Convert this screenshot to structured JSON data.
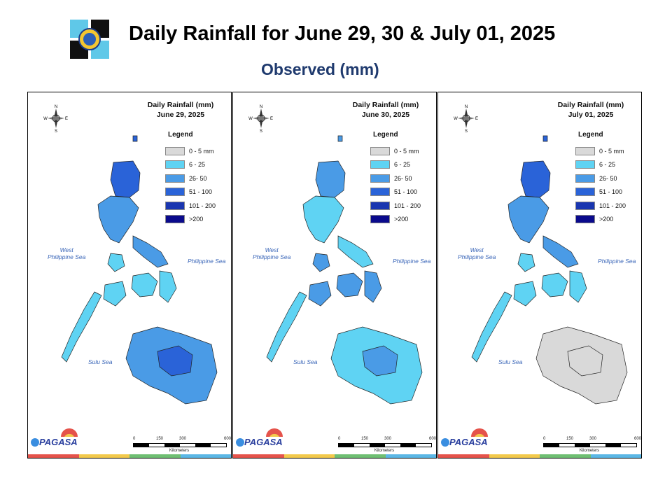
{
  "header": {
    "title": "Daily Rainfall for June 29, 30 & July 01, 2025",
    "subtitle": "Observed (mm)"
  },
  "legend": {
    "title": "Legend",
    "items": [
      {
        "label": "0 - 5 mm",
        "color": "#d9d9d9"
      },
      {
        "label": "6 - 25",
        "color": "#5fd3f3"
      },
      {
        "label": "26- 50",
        "color": "#4a9be6"
      },
      {
        "label": "51 - 100",
        "color": "#2a63d8"
      },
      {
        "label": "101 - 200",
        "color": "#1a36b0"
      },
      {
        "label": ">200",
        "color": "#0a0a8c"
      }
    ]
  },
  "panels": [
    {
      "title_line1": "Daily Rainfall (mm)",
      "title_line2": "June 29, 2025",
      "regions": {
        "luzon": "#4a9be6",
        "luzon_north": "#2a63d8",
        "visayas": "#5fd3f3",
        "mindanao": "#4a9be6",
        "mindanao_core": "#2a63d8",
        "palawan": "#5fd3f3"
      }
    },
    {
      "title_line1": "Daily Rainfall (mm)",
      "title_line2": "June 30, 2025",
      "regions": {
        "luzon": "#5fd3f3",
        "luzon_north": "#4a9be6",
        "visayas": "#4a9be6",
        "mindanao": "#5fd3f3",
        "mindanao_core": "#4a9be6",
        "palawan": "#5fd3f3"
      }
    },
    {
      "title_line1": "Daily Rainfall (mm)",
      "title_line2": "July 01, 2025",
      "regions": {
        "luzon": "#4a9be6",
        "luzon_north": "#2a63d8",
        "visayas": "#5fd3f3",
        "mindanao": "#d9d9d9",
        "mindanao_core": "#d9d9d9",
        "palawan": "#5fd3f3"
      }
    }
  ],
  "map_labels": {
    "west_sea_line1": "West",
    "west_sea_line2": "Philippine Sea",
    "philippine_sea": "Philippine Sea",
    "sulu_sea": "Sulu Sea"
  },
  "scale": {
    "ticks": [
      "0",
      "150",
      "300",
      "600"
    ],
    "unit": "Kilometers"
  },
  "compass": {
    "n": "N",
    "s": "S",
    "e": "E",
    "w": "W"
  },
  "branding": {
    "agency": "PAGASA",
    "stripe_colors": [
      "#e5534b",
      "#f2c94c",
      "#6fbf73",
      "#5bb7e5"
    ]
  }
}
